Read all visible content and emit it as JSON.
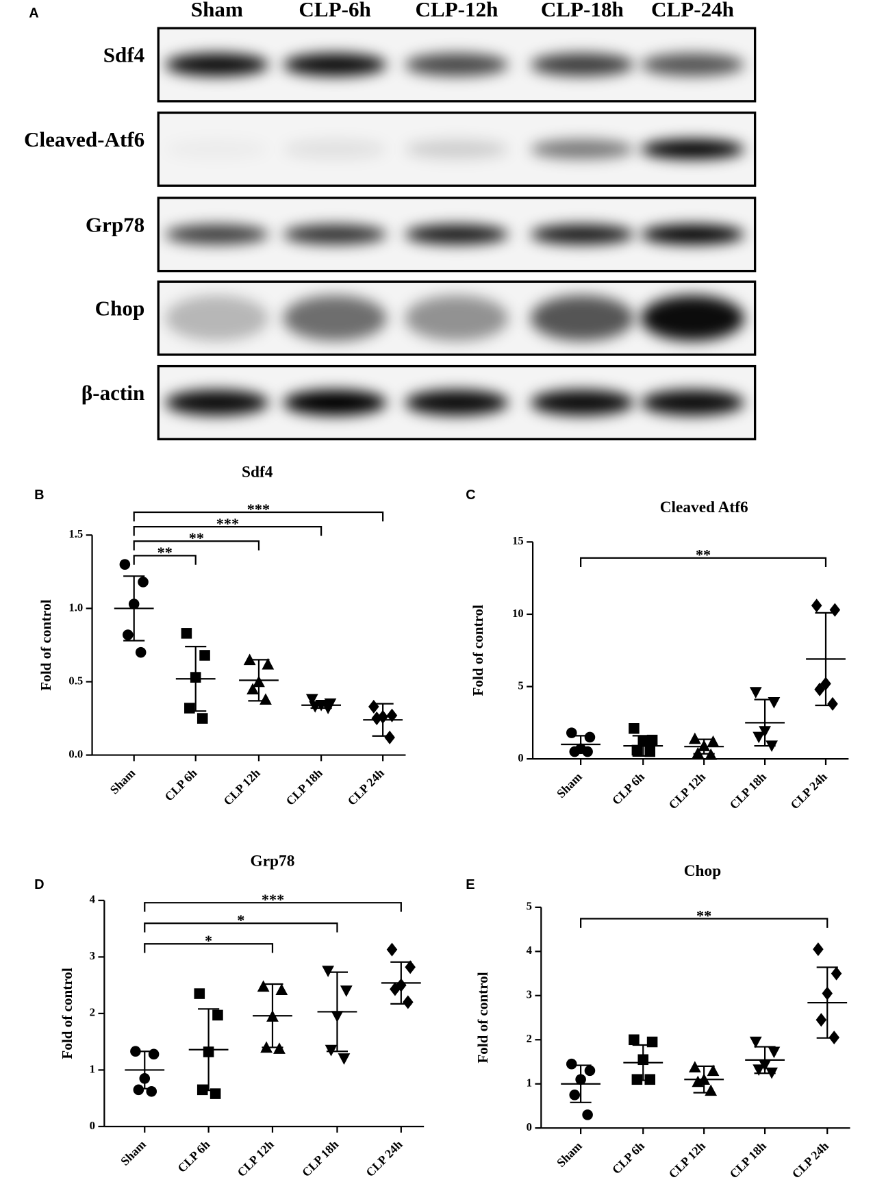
{
  "panel_a": {
    "label": "A",
    "lanes": [
      "Sham",
      "CLP-6h",
      "CLP-12h",
      "CLP-18h",
      "CLP-24h"
    ],
    "rows": [
      "Sdf4",
      "Cleaved-Atf6",
      "Grp78",
      "Chop",
      "β-actin"
    ]
  },
  "chart_data": [
    {
      "type": "scatter",
      "panel": "B",
      "title": "Sdf4",
      "ylabel": "Fold of control",
      "categories": [
        "Sham",
        "CLP 6h",
        "CLP 12h",
        "CLP 18h",
        "CLP 24h"
      ],
      "ylim": [
        0,
        1.5
      ],
      "yticks": [
        {
          "value": 0,
          "label": "0.0"
        },
        {
          "value": 0.5,
          "label": "0.5"
        },
        {
          "value": 1,
          "label": "1.0"
        },
        {
          "value": 1.5,
          "label": "1.5"
        }
      ],
      "color": "#000000",
      "groups": [
        {
          "marker": "circle",
          "values": [
            1.3,
            1.18,
            1.03,
            0.82,
            0.7
          ],
          "mean": 1.0,
          "sd": 0.22
        },
        {
          "marker": "square",
          "values": [
            0.83,
            0.68,
            0.53,
            0.32,
            0.25
          ],
          "mean": 0.52,
          "sd": 0.22
        },
        {
          "marker": "triangle",
          "values": [
            0.65,
            0.62,
            0.5,
            0.45,
            0.38
          ],
          "mean": 0.51,
          "sd": 0.14
        },
        {
          "marker": "triangle-down",
          "values": [
            0.38,
            0.35,
            0.34,
            0.33,
            0.32
          ],
          "mean": 0.34,
          "sd": 0.02
        },
        {
          "marker": "diamond",
          "values": [
            0.33,
            0.27,
            0.26,
            0.25,
            0.12
          ],
          "mean": 0.24,
          "sd": 0.11
        }
      ],
      "brackets": [
        {
          "between": [
            0,
            1
          ],
          "label": "**"
        },
        {
          "between": [
            0,
            2
          ],
          "label": "**"
        },
        {
          "between": [
            0,
            3
          ],
          "label": "***"
        },
        {
          "between": [
            0,
            4
          ],
          "label": "***"
        }
      ]
    },
    {
      "type": "scatter",
      "panel": "C",
      "title": "Cleaved Atf6",
      "ylabel": "Fold of control",
      "categories": [
        "Sham",
        "CLP 6h",
        "CLP 12h",
        "CLP 18h",
        "CLP 24h"
      ],
      "ylim": [
        0,
        15
      ],
      "yticks": [
        0,
        5,
        10,
        15
      ],
      "color": "#000000",
      "groups": [
        {
          "marker": "circle",
          "values": [
            1.8,
            1.5,
            0.7,
            0.5,
            0.5
          ],
          "mean": 1.0,
          "sd": 0.6
        },
        {
          "marker": "square",
          "values": [
            2.1,
            1.3,
            1.2,
            0.6,
            0.5
          ],
          "mean": 0.9,
          "sd": 0.7
        },
        {
          "marker": "triangle",
          "values": [
            1.4,
            1.2,
            0.9,
            0.4,
            0.3
          ],
          "mean": 0.85,
          "sd": 0.5
        },
        {
          "marker": "triangle-down",
          "values": [
            4.6,
            3.9,
            1.9,
            1.5,
            0.9
          ],
          "mean": 2.5,
          "sd": 1.6
        },
        {
          "marker": "diamond",
          "values": [
            10.6,
            10.3,
            5.2,
            4.8,
            3.8
          ],
          "mean": 6.9,
          "sd": 3.2
        }
      ],
      "brackets": [
        {
          "between": [
            0,
            4
          ],
          "label": "**"
        }
      ]
    },
    {
      "type": "scatter",
      "panel": "D",
      "title": "Grp78",
      "ylabel": "Fold of control",
      "categories": [
        "Sham",
        "CLP 6h",
        "CLP 12h",
        "CLP 18h",
        "CLP 24h"
      ],
      "ylim": [
        0,
        4
      ],
      "yticks": [
        0,
        1,
        2,
        3,
        4
      ],
      "color": "#000000",
      "groups": [
        {
          "marker": "circle",
          "values": [
            1.33,
            1.28,
            0.85,
            0.65,
            0.62
          ],
          "mean": 1.0,
          "sd": 0.33
        },
        {
          "marker": "square",
          "values": [
            2.35,
            1.97,
            1.32,
            0.65,
            0.58
          ],
          "mean": 1.36,
          "sd": 0.72
        },
        {
          "marker": "triangle",
          "values": [
            2.48,
            2.42,
            1.95,
            1.4,
            1.38
          ],
          "mean": 1.96,
          "sd": 0.56
        },
        {
          "marker": "triangle-down",
          "values": [
            2.75,
            2.4,
            1.95,
            1.35,
            1.2
          ],
          "mean": 2.03,
          "sd": 0.7
        },
        {
          "marker": "diamond",
          "values": [
            3.13,
            2.82,
            2.5,
            2.43,
            2.2
          ],
          "mean": 2.54,
          "sd": 0.37
        }
      ],
      "brackets": [
        {
          "between": [
            0,
            2
          ],
          "label": "*"
        },
        {
          "between": [
            0,
            3
          ],
          "label": "*"
        },
        {
          "between": [
            0,
            4
          ],
          "label": "***"
        }
      ]
    },
    {
      "type": "scatter",
      "panel": "E",
      "title": "Chop",
      "ylabel": "Fold of control",
      "categories": [
        "Sham",
        "CLP 6h",
        "CLP 12h",
        "CLP 18h",
        "CLP 24h"
      ],
      "ylim": [
        0,
        5
      ],
      "yticks": [
        0,
        1,
        2,
        3,
        4,
        5
      ],
      "color": "#000000",
      "groups": [
        {
          "marker": "circle",
          "values": [
            1.45,
            1.3,
            1.1,
            0.75,
            0.3
          ],
          "mean": 1.0,
          "sd": 0.42
        },
        {
          "marker": "square",
          "values": [
            2.0,
            1.95,
            1.55,
            1.1,
            1.1
          ],
          "mean": 1.48,
          "sd": 0.4
        },
        {
          "marker": "triangle",
          "values": [
            1.38,
            1.3,
            1.1,
            1.05,
            0.85
          ],
          "mean": 1.1,
          "sd": 0.3
        },
        {
          "marker": "triangle-down",
          "values": [
            1.95,
            1.72,
            1.42,
            1.32,
            1.25
          ],
          "mean": 1.54,
          "sd": 0.3
        },
        {
          "marker": "diamond",
          "values": [
            4.05,
            3.5,
            3.05,
            2.45,
            2.05
          ],
          "mean": 2.84,
          "sd": 0.8
        }
      ],
      "brackets": [
        {
          "between": [
            0,
            4
          ],
          "label": "**"
        }
      ]
    }
  ]
}
